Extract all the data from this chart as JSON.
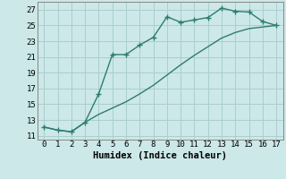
{
  "line1_x": [
    0,
    1,
    2,
    3,
    4,
    5,
    6,
    7,
    8,
    9,
    10,
    11,
    12,
    13,
    14,
    15,
    16,
    17
  ],
  "line1_y": [
    12.1,
    11.7,
    11.5,
    12.7,
    16.3,
    21.3,
    21.3,
    22.5,
    23.5,
    26.1,
    25.4,
    25.7,
    26.0,
    27.2,
    26.8,
    26.7,
    25.5,
    25.0
  ],
  "line2_x": [
    0,
    1,
    2,
    3,
    4,
    5,
    6,
    7,
    8,
    9,
    10,
    11,
    12,
    13,
    14,
    15,
    16,
    17
  ],
  "line2_y": [
    12.1,
    11.7,
    11.5,
    12.7,
    13.7,
    14.5,
    15.3,
    16.3,
    17.4,
    18.7,
    20.0,
    21.2,
    22.3,
    23.4,
    24.1,
    24.6,
    24.8,
    25.0
  ],
  "line_color": "#2d7d6e",
  "bg_color": "#cce8e8",
  "grid_color": "#aacece",
  "xlabel": "Humidex (Indice chaleur)",
  "xlim": [
    -0.5,
    17.5
  ],
  "ylim": [
    10.5,
    28.0
  ],
  "xticks": [
    0,
    1,
    2,
    3,
    4,
    5,
    6,
    7,
    8,
    9,
    10,
    11,
    12,
    13,
    14,
    15,
    16,
    17
  ],
  "yticks": [
    11,
    13,
    15,
    17,
    19,
    21,
    23,
    25,
    27
  ],
  "xlabel_fontsize": 7.5,
  "tick_fontsize": 6.5
}
